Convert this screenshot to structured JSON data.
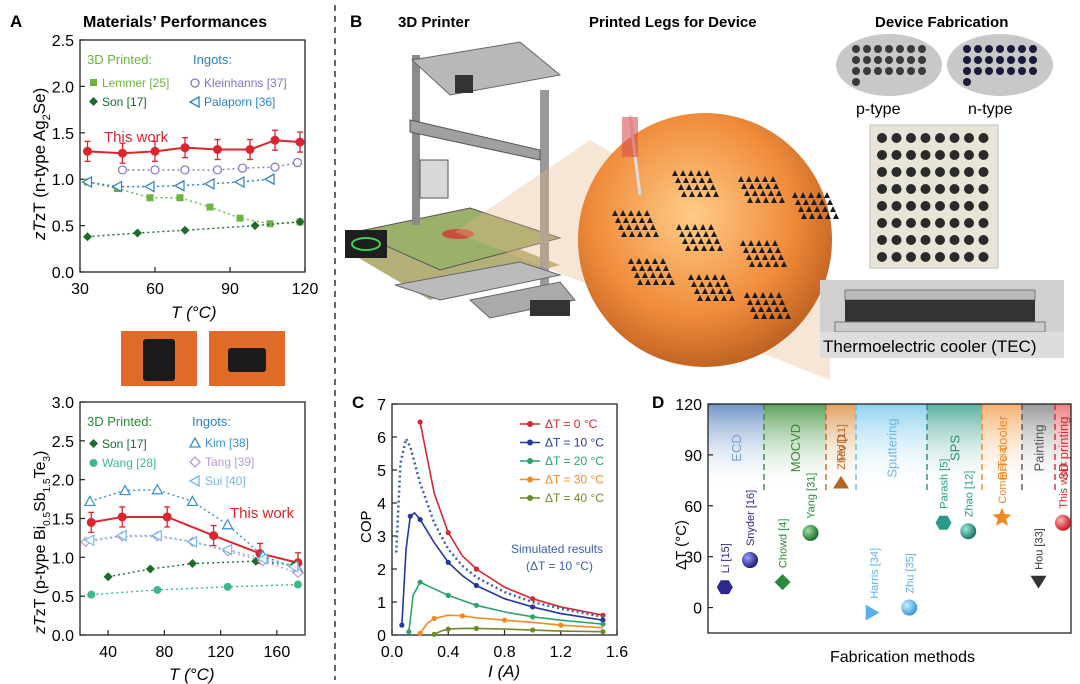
{
  "panel_labels": {
    "a": "A",
    "b": "B",
    "c": "C",
    "d": "D"
  },
  "panelA": {
    "title": "Materials’ Performances",
    "top": {
      "ylabel_main": "zT (n-type Ag",
      "ylabel_sub": "2",
      "ylabel_end": "Se)",
      "xlabel": "T (°C)",
      "legend_header_printed": "3D Printed:",
      "legend_header_ingots": "Ingots:",
      "this_work": "This work"
    },
    "bottom": {
      "ylabel_main": "zT (p-type Bi",
      "ylabel_sub1": "0.5",
      "ylabel_mid": "Sb",
      "ylabel_sub2": "1.5",
      "ylabel_mid2": "Te",
      "ylabel_sub3": "3",
      "ylabel_end": ")",
      "xlabel": "T (°C)",
      "legend_header_printed": "3D Printed:",
      "legend_header_ingots": "Ingots:",
      "this_work": "This work"
    }
  },
  "panelB": {
    "title_printer": "3D Printer",
    "title_legs": "Printed Legs for Device",
    "title_device": "Device Fabrication",
    "ptype": "p-type",
    "ntype": "n-type",
    "tec": "Thermoelectric cooler (TEC)"
  },
  "panelC": {
    "ylabel": "COP",
    "xlabel": "I (A)",
    "sim_label1": "Simulated results",
    "sim_label2": "(ΔT = 10 °C)"
  },
  "panelD": {
    "ylabel": "ΔT (°C)",
    "xlabel": "Fabrication methods"
  },
  "chart_data": [
    {
      "type": "line",
      "xlim": [
        30,
        120
      ],
      "ylim": [
        0,
        2.5
      ],
      "xticks": [
        30,
        60,
        90,
        120
      ],
      "yticks": [
        0.0,
        0.5,
        1.0,
        1.5,
        2.0,
        2.5
      ],
      "series": [
        {
          "name": "This work",
          "color": "#d9262f",
          "marker": "circle-err",
          "x": [
            33,
            47,
            60,
            72,
            85,
            98,
            108,
            118
          ],
          "y": [
            1.3,
            1.28,
            1.3,
            1.34,
            1.32,
            1.32,
            1.42,
            1.4
          ]
        },
        {
          "name": "Lemmer [25]",
          "color": "#6db33f",
          "marker": "square",
          "x": [
            33,
            45,
            58,
            70,
            82,
            94,
            106,
            118
          ],
          "y": [
            0.97,
            0.9,
            0.8,
            0.8,
            0.7,
            0.58,
            0.52,
            0.54
          ]
        },
        {
          "name": "Son [17]",
          "color": "#1e6b2d",
          "marker": "diamond",
          "x": [
            33,
            53,
            72,
            100,
            118
          ],
          "y": [
            0.38,
            0.42,
            0.45,
            0.5,
            0.54
          ]
        },
        {
          "name": "Kleinhanns [37]",
          "color": "#7f75c8",
          "marker": "hexagon-open",
          "x": [
            47,
            60,
            72,
            85,
            95,
            108,
            117
          ],
          "y": [
            1.1,
            1.1,
            1.1,
            1.1,
            1.12,
            1.13,
            1.18
          ]
        },
        {
          "name": "Palaporn [36]",
          "color": "#2a7fc0",
          "marker": "tri-left-open",
          "x": [
            33,
            45,
            58,
            70,
            82,
            94,
            106
          ],
          "y": [
            0.97,
            0.92,
            0.92,
            0.93,
            0.95,
            0.97,
            1.0
          ]
        }
      ]
    },
    {
      "type": "line",
      "xlim": [
        20,
        180
      ],
      "ylim": [
        0,
        3.0
      ],
      "xticks": [
        40,
        80,
        120,
        160
      ],
      "yticks": [
        0.0,
        0.5,
        1.0,
        1.5,
        2.0,
        2.5,
        3.0
      ],
      "series": [
        {
          "name": "This work",
          "color": "#d9262f",
          "marker": "circle-err",
          "x": [
            28,
            50,
            82,
            115,
            148,
            175
          ],
          "y": [
            1.45,
            1.52,
            1.52,
            1.28,
            1.05,
            0.93
          ]
        },
        {
          "name": "Son [17]",
          "color": "#1e6b2d",
          "marker": "diamond",
          "x": [
            40,
            70,
            100,
            145,
            172
          ],
          "y": [
            0.75,
            0.85,
            0.92,
            0.95,
            0.9
          ]
        },
        {
          "name": "Wang [28]",
          "color": "#3db88a",
          "marker": "pentagon",
          "x": [
            28,
            75,
            125,
            175
          ],
          "y": [
            0.52,
            0.58,
            0.62,
            0.65
          ]
        },
        {
          "name": "Kim [38]",
          "color": "#3a8fd0",
          "marker": "tri-up-open",
          "x": [
            27,
            52,
            75,
            100,
            125,
            150,
            175
          ],
          "y": [
            1.72,
            1.86,
            1.87,
            1.72,
            1.42,
            1.02,
            0.85
          ]
        },
        {
          "name": "Tang [39]",
          "color": "#b59ad6",
          "marker": "diamond-open",
          "x": [
            24,
            50,
            75,
            100,
            125,
            150,
            175
          ],
          "y": [
            1.2,
            1.27,
            1.27,
            1.2,
            1.08,
            0.95,
            0.8
          ]
        },
        {
          "name": "Sui [40]",
          "color": "#74b8e8",
          "marker": "tri-left-open",
          "x": [
            27,
            50,
            75,
            100,
            125,
            150,
            172
          ],
          "y": [
            1.22,
            1.28,
            1.28,
            1.2,
            1.1,
            0.98,
            0.88
          ]
        }
      ]
    },
    {
      "type": "line",
      "xlim": [
        0,
        1.6
      ],
      "ylim": [
        0,
        7
      ],
      "xticks": [
        0.0,
        0.4,
        0.8,
        1.2,
        1.6
      ],
      "yticks": [
        0,
        1,
        2,
        3,
        4,
        5,
        6,
        7
      ],
      "series": [
        {
          "name": "ΔT = 0 °C",
          "color": "#d9262f",
          "x": [
            0.2,
            0.3,
            0.4,
            0.5,
            0.6,
            0.8,
            1.0,
            1.2,
            1.5
          ],
          "y": [
            6.45,
            4.3,
            3.1,
            2.4,
            2.0,
            1.45,
            1.1,
            0.85,
            0.6
          ]
        },
        {
          "name": "ΔT = 10 °C",
          "color": "#24399a",
          "x": [
            0.07,
            0.1,
            0.13,
            0.16,
            0.2,
            0.3,
            0.4,
            0.5,
            0.6,
            0.8,
            1.0,
            1.2,
            1.5
          ],
          "y": [
            0.3,
            2.6,
            3.6,
            3.7,
            3.5,
            2.8,
            2.2,
            1.8,
            1.5,
            1.1,
            0.85,
            0.65,
            0.45
          ]
        },
        {
          "name": "ΔT = 20 °C",
          "color": "#2ba36b",
          "x": [
            0.12,
            0.15,
            0.2,
            0.3,
            0.4,
            0.5,
            0.6,
            0.8,
            1.0,
            1.2,
            1.5
          ],
          "y": [
            0.1,
            1.2,
            1.6,
            1.4,
            1.2,
            1.05,
            0.9,
            0.7,
            0.55,
            0.45,
            0.33
          ]
        },
        {
          "name": "ΔT = 30 °C",
          "color": "#f08a24",
          "x": [
            0.2,
            0.25,
            0.3,
            0.4,
            0.5,
            0.6,
            0.8,
            1.0,
            1.2,
            1.5
          ],
          "y": [
            0.05,
            0.35,
            0.5,
            0.6,
            0.58,
            0.52,
            0.45,
            0.38,
            0.3,
            0.22
          ]
        },
        {
          "name": "ΔT = 40 °C",
          "color": "#6d8a2b",
          "x": [
            0.3,
            0.35,
            0.4,
            0.5,
            0.6,
            0.8,
            1.0,
            1.2,
            1.5
          ],
          "y": [
            0.02,
            0.12,
            0.18,
            0.2,
            0.2,
            0.18,
            0.15,
            0.12,
            0.1
          ]
        },
        {
          "name": "Simulated",
          "color": "#3b5fa8",
          "dashed": true,
          "x": [
            0.03,
            0.06,
            0.1,
            0.13,
            0.2,
            0.3,
            0.4,
            0.5,
            0.6,
            0.8,
            1.0,
            1.2,
            1.5
          ],
          "y": [
            2.5,
            5.2,
            5.95,
            5.7,
            4.6,
            3.4,
            2.6,
            2.1,
            1.75,
            1.3,
            1.0,
            0.8,
            0.55
          ]
        }
      ]
    },
    {
      "type": "scatter",
      "ylim": [
        -15,
        120
      ],
      "yticks": [
        0,
        30,
        60,
        90,
        120
      ],
      "methods": [
        {
          "label": "ECD",
          "color": "#7b9fd0"
        },
        {
          "label": "MOCVD",
          "color": "#3a8a3a"
        },
        {
          "label": "PVD",
          "color": "#c06a20"
        },
        {
          "label": "Sputtering",
          "color": "#6bb8e8"
        },
        {
          "label": "SPS",
          "color": "#2a8a78"
        },
        {
          "label": "BiTe cooler",
          "color": "#f08a24"
        },
        {
          "label": "Painting",
          "color": "#555555"
        },
        {
          "label": "3D printing",
          "color": "#d9262f"
        }
      ],
      "points": [
        {
          "label": "Li [15]",
          "value": 12,
          "color": "#2b2a8c",
          "marker": "hexagon"
        },
        {
          "label": "Snyder [16]",
          "value": 28,
          "color": "#2b2a8c",
          "marker": "sphere"
        },
        {
          "label": "Chowd [4]",
          "value": 15,
          "color": "#2a8a3a",
          "marker": "diamond"
        },
        {
          "label": "Yang [31]",
          "value": 44,
          "color": "#2a8a3a",
          "marker": "sphere"
        },
        {
          "label": "Zhao [11]",
          "value": 73,
          "color": "#b5651d",
          "marker": "triangle"
        },
        {
          "label": "Harris [34]",
          "value": -3,
          "color": "#5ab0e8",
          "marker": "triangle-right"
        },
        {
          "label": "Zhu [35]",
          "value": 0,
          "color": "#5ab0e8",
          "marker": "sphere"
        },
        {
          "label": "Parash [5]",
          "value": 50,
          "color": "#2a9a88",
          "marker": "hexagon"
        },
        {
          "label": "Zhao [12]",
          "value": 45,
          "color": "#2a9a88",
          "marker": "sphere"
        },
        {
          "label": "Commercial",
          "value": 53,
          "color": "#f08a24",
          "marker": "star"
        },
        {
          "label": "Hou [33]",
          "value": 14,
          "color": "#333333",
          "marker": "triangle-down"
        },
        {
          "label": "This work",
          "value": 50,
          "color": "#d9262f",
          "marker": "sphere"
        }
      ]
    }
  ]
}
